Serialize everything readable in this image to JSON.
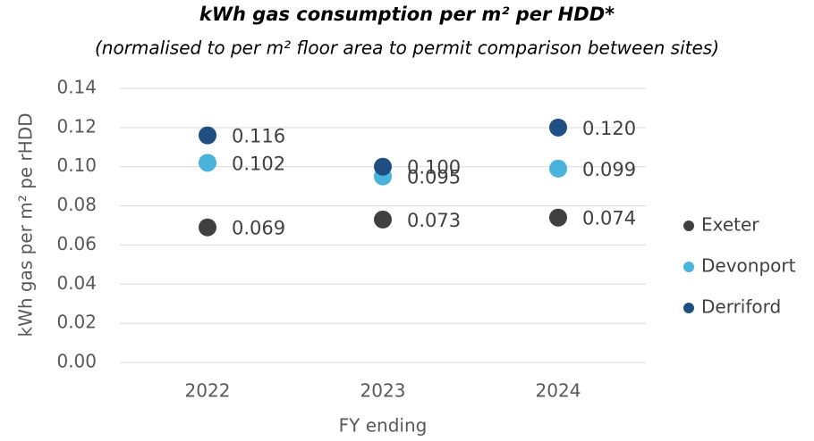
{
  "chart_data": {
    "type": "scatter",
    "title": "kWh gas consumption per m² per HDD*",
    "subtitle": "(normalised to per m² floor area to permit comparison between sites)",
    "x_label": "FY ending",
    "y_label": "kWh gas per m² pe rHDD",
    "categories": [
      "2022",
      "2023",
      "2024"
    ],
    "series": [
      {
        "name": "Exeter",
        "color": "#404040",
        "values": [
          0.069,
          0.073,
          0.074
        ],
        "value_labels": [
          "0.069",
          "0.073",
          "0.074"
        ]
      },
      {
        "name": "Devonport",
        "color": "#4ab3dc",
        "values": [
          0.102,
          0.095,
          0.099
        ],
        "value_labels": [
          "0.102",
          "0.095",
          "0.099"
        ]
      },
      {
        "name": "Derriford",
        "color": "#1f4e83",
        "values": [
          0.116,
          0.1,
          0.12
        ],
        "value_labels": [
          "0.116",
          "0.100",
          "0.120"
        ]
      }
    ],
    "ylim": [
      0,
      0.14
    ],
    "yticks": [
      {
        "value": 0,
        "label": "0.00"
      },
      0.02,
      0.04,
      0.06,
      0.08,
      {
        "value": 0.1,
        "label": "0.10"
      },
      0.12,
      0.14
    ],
    "grid": true,
    "legend": "right"
  }
}
